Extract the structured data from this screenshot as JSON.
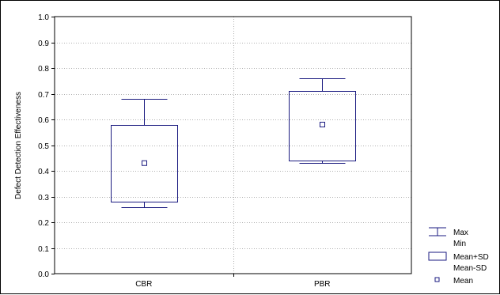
{
  "chart_data": {
    "type": "boxplot",
    "title": "",
    "xlabel": "",
    "ylabel": "Defect Detection Effectiveness",
    "ylim": [
      0.0,
      1.0
    ],
    "yticks": [
      "0.0",
      "0.1",
      "0.2",
      "0.3",
      "0.4",
      "0.5",
      "0.6",
      "0.7",
      "0.8",
      "0.9",
      "1.0"
    ],
    "categories": [
      "CBR",
      "PBR"
    ],
    "boxes": [
      {
        "category": "CBR",
        "max": 0.68,
        "min": 0.26,
        "mean_plus_sd": 0.58,
        "mean_minus_sd": 0.28,
        "mean": 0.43
      },
      {
        "category": "PBR",
        "max": 0.76,
        "min": 0.43,
        "mean_plus_sd": 0.71,
        "mean_minus_sd": 0.44,
        "mean": 0.58
      }
    ],
    "grid": true,
    "legend_position": "bottom-right",
    "legend": {
      "whisker": [
        "Max",
        "Min"
      ],
      "box": [
        "Mean+SD",
        "Mean-SD"
      ],
      "point": [
        "Mean"
      ]
    },
    "colors": {
      "marks": "#1a1a80",
      "grid": "#b0b0b0"
    }
  }
}
